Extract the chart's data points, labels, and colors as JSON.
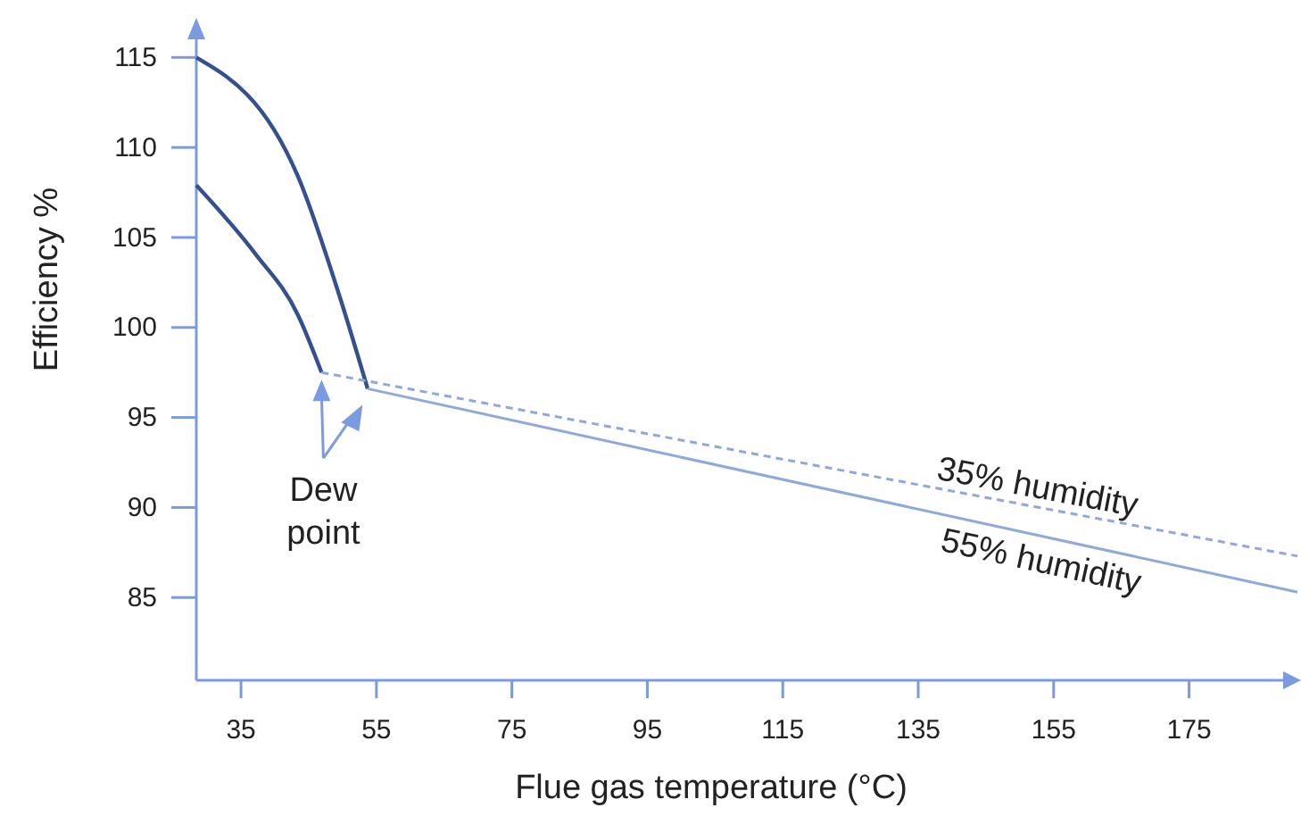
{
  "chart_data": {
    "type": "line",
    "xlabel": "Flue gas temperature  (°C)",
    "ylabel": "Efficiency %",
    "xlim": [
      28.4,
      191
    ],
    "ylim": [
      80.4,
      117
    ],
    "xticks": [
      35,
      55,
      75,
      95,
      115,
      135,
      155,
      175
    ],
    "yticks": [
      85,
      90,
      95,
      100,
      105,
      110,
      115
    ],
    "series": [
      {
        "color": "#34508f",
        "line_style": "solid",
        "x": [
          28.4,
          37.1,
          43.4,
          46.9
        ],
        "values": [
          107.9,
          104.1,
          100.7,
          97.5
        ]
      },
      {
        "color": "#34508f",
        "line_style": "solid",
        "x": [
          28.4,
          43.4,
          49.5,
          53.7
        ],
        "values": [
          115,
          108.4,
          101.8,
          96.6
        ]
      },
      {
        "name": "35% humidity",
        "color": "#8fa9dc",
        "line_style": "dashed",
        "x": [
          46.9,
          191
        ],
        "values": [
          97.5,
          87.3
        ]
      },
      {
        "name": "55% humidity",
        "color": "#8fa9dc",
        "line_style": "solid",
        "x": [
          53.7,
          191
        ],
        "values": [
          96.6,
          85.3
        ]
      }
    ],
    "annotations": [
      {
        "text": "Dew point",
        "x": 46.9,
        "y": 97.5
      }
    ],
    "grid": false,
    "marker": "none"
  }
}
